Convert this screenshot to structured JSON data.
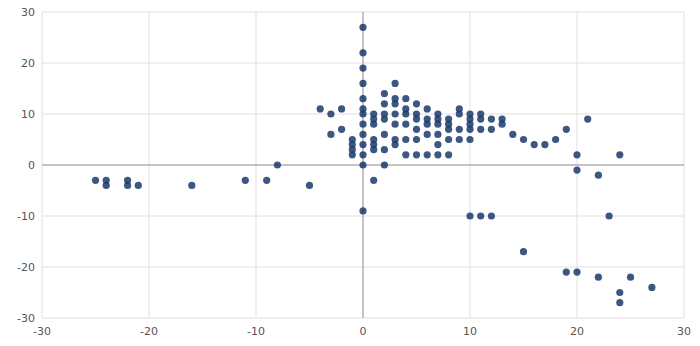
{
  "chart_data": {
    "type": "scatter",
    "x": [
      -25,
      -24,
      -24,
      -22,
      -22,
      -21,
      -16,
      -11,
      -9,
      -8,
      -5,
      -4,
      -3,
      -3,
      -2,
      -2,
      -1,
      -1,
      -1,
      -1,
      0,
      0,
      0,
      0,
      0,
      0,
      0,
      0,
      0,
      0,
      0,
      0,
      0,
      1,
      1,
      1,
      1,
      1,
      1,
      1,
      2,
      2,
      2,
      2,
      2,
      2,
      2,
      3,
      3,
      3,
      3,
      3,
      3,
      3,
      4,
      4,
      4,
      4,
      4,
      4,
      5,
      5,
      5,
      5,
      5,
      5,
      6,
      6,
      6,
      6,
      6,
      7,
      7,
      7,
      7,
      7,
      7,
      8,
      8,
      8,
      8,
      8,
      9,
      9,
      9,
      9,
      10,
      10,
      10,
      10,
      10,
      11,
      11,
      11,
      12,
      12,
      13,
      13,
      14,
      15,
      16,
      17,
      18,
      19,
      20,
      20,
      21,
      22,
      23,
      24,
      10,
      11,
      12,
      15,
      19,
      20,
      22,
      24,
      24,
      25,
      27
    ],
    "values": [
      -3,
      -3,
      -4,
      -3,
      -4,
      -4,
      -4,
      -3,
      -3,
      0,
      -4,
      11,
      10,
      6,
      11,
      7,
      5,
      4,
      3,
      2,
      27,
      22,
      19,
      16,
      13,
      11,
      10,
      8,
      6,
      4,
      2,
      0,
      -9,
      10,
      9,
      8,
      5,
      4,
      3,
      -3,
      14,
      12,
      10,
      9,
      6,
      3,
      0,
      16,
      13,
      12,
      10,
      8,
      5,
      4,
      13,
      11,
      10,
      8,
      5,
      2,
      12,
      10,
      9,
      7,
      5,
      2,
      11,
      9,
      8,
      6,
      2,
      10,
      9,
      8,
      6,
      4,
      2,
      9,
      8,
      7,
      5,
      2,
      11,
      10,
      7,
      5,
      10,
      9,
      8,
      7,
      5,
      10,
      9,
      7,
      9,
      7,
      9,
      8,
      6,
      5,
      4,
      4,
      5,
      7,
      2,
      -1,
      9,
      -2,
      -10,
      2,
      -10,
      -10,
      -10,
      -17,
      -21,
      -21,
      -22,
      -25,
      -27,
      -22,
      -24
    ],
    "color": "#1a3a6b",
    "xlim": [
      -30,
      30
    ],
    "ylim": [
      -30,
      30
    ],
    "xticks": [
      -30,
      -20,
      -10,
      0,
      10,
      20,
      30
    ],
    "yticks": [
      -30,
      -20,
      -10,
      0,
      10,
      20,
      30
    ],
    "grid": true
  }
}
